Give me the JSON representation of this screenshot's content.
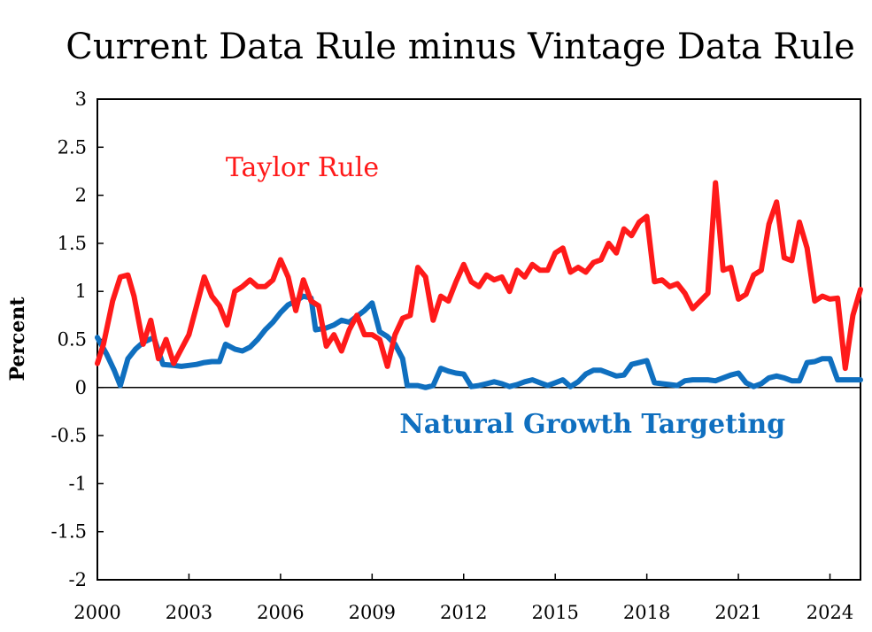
{
  "chart_data": {
    "type": "line",
    "title": "Current Data Rule minus Vintage Data Rule",
    "ylabel": "Percent",
    "xlim": [
      2000,
      2025
    ],
    "ylim": [
      -2,
      3
    ],
    "yticks": [
      -2,
      -1.5,
      -1,
      -0.5,
      0,
      0.5,
      1,
      1.5,
      2,
      2.5,
      3
    ],
    "ytick_labels": [
      "-2",
      "-1.5",
      "-1",
      "-0.5",
      "0",
      "0.5",
      "1",
      "1.5",
      "2",
      "2.5",
      "3"
    ],
    "xticks": [
      2000,
      2003,
      2006,
      2009,
      2012,
      2015,
      2018,
      2021,
      2024
    ],
    "xtick_labels": [
      "2000",
      "2003",
      "2006",
      "2009",
      "2012",
      "2015",
      "2018",
      "2021",
      "2024"
    ],
    "grid": false,
    "zero_line": true,
    "series": [
      {
        "name": "Taylor Rule",
        "color": "#ff1a1a",
        "points": [
          [
            2000.0,
            0.25
          ],
          [
            2000.2,
            0.45
          ],
          [
            2000.5,
            0.9
          ],
          [
            2000.75,
            1.15
          ],
          [
            2001.0,
            1.17
          ],
          [
            2001.2,
            0.95
          ],
          [
            2001.5,
            0.45
          ],
          [
            2001.75,
            0.7
          ],
          [
            2002.0,
            0.3
          ],
          [
            2002.25,
            0.5
          ],
          [
            2002.5,
            0.25
          ],
          [
            2002.75,
            0.4
          ],
          [
            2003.0,
            0.55
          ],
          [
            2003.25,
            0.85
          ],
          [
            2003.5,
            1.15
          ],
          [
            2003.75,
            0.95
          ],
          [
            2004.0,
            0.85
          ],
          [
            2004.25,
            0.65
          ],
          [
            2004.5,
            1.0
          ],
          [
            2004.75,
            1.05
          ],
          [
            2005.0,
            1.12
          ],
          [
            2005.25,
            1.05
          ],
          [
            2005.5,
            1.05
          ],
          [
            2005.75,
            1.12
          ],
          [
            2006.0,
            1.33
          ],
          [
            2006.25,
            1.15
          ],
          [
            2006.5,
            0.8
          ],
          [
            2006.75,
            1.12
          ],
          [
            2007.0,
            0.9
          ],
          [
            2007.25,
            0.85
          ],
          [
            2007.5,
            0.43
          ],
          [
            2007.75,
            0.55
          ],
          [
            2008.0,
            0.38
          ],
          [
            2008.25,
            0.6
          ],
          [
            2008.5,
            0.75
          ],
          [
            2008.75,
            0.55
          ],
          [
            2009.0,
            0.55
          ],
          [
            2009.25,
            0.5
          ],
          [
            2009.5,
            0.22
          ],
          [
            2009.75,
            0.55
          ],
          [
            2010.0,
            0.72
          ],
          [
            2010.25,
            0.75
          ],
          [
            2010.5,
            1.25
          ],
          [
            2010.75,
            1.15
          ],
          [
            2011.0,
            0.7
          ],
          [
            2011.25,
            0.95
          ],
          [
            2011.5,
            0.9
          ],
          [
            2011.75,
            1.1
          ],
          [
            2012.0,
            1.28
          ],
          [
            2012.25,
            1.1
          ],
          [
            2012.5,
            1.05
          ],
          [
            2012.75,
            1.17
          ],
          [
            2013.0,
            1.12
          ],
          [
            2013.25,
            1.15
          ],
          [
            2013.5,
            1.0
          ],
          [
            2013.75,
            1.22
          ],
          [
            2014.0,
            1.15
          ],
          [
            2014.25,
            1.28
          ],
          [
            2014.5,
            1.22
          ],
          [
            2014.75,
            1.22
          ],
          [
            2015.0,
            1.4
          ],
          [
            2015.25,
            1.45
          ],
          [
            2015.5,
            1.2
          ],
          [
            2015.75,
            1.25
          ],
          [
            2016.0,
            1.2
          ],
          [
            2016.25,
            1.3
          ],
          [
            2016.5,
            1.33
          ],
          [
            2016.75,
            1.5
          ],
          [
            2017.0,
            1.4
          ],
          [
            2017.25,
            1.65
          ],
          [
            2017.5,
            1.58
          ],
          [
            2017.75,
            1.72
          ],
          [
            2018.0,
            1.78
          ],
          [
            2018.25,
            1.1
          ],
          [
            2018.5,
            1.12
          ],
          [
            2018.75,
            1.05
          ],
          [
            2019.0,
            1.08
          ],
          [
            2019.25,
            0.98
          ],
          [
            2019.5,
            0.82
          ],
          [
            2019.75,
            0.9
          ],
          [
            2020.0,
            0.98
          ],
          [
            2020.25,
            2.13
          ],
          [
            2020.5,
            1.22
          ],
          [
            2020.75,
            1.25
          ],
          [
            2021.0,
            0.92
          ],
          [
            2021.25,
            0.97
          ],
          [
            2021.5,
            1.17
          ],
          [
            2021.75,
            1.22
          ],
          [
            2022.0,
            1.7
          ],
          [
            2022.25,
            1.93
          ],
          [
            2022.5,
            1.35
          ],
          [
            2022.75,
            1.32
          ],
          [
            2023.0,
            1.72
          ],
          [
            2023.25,
            1.45
          ],
          [
            2023.5,
            0.9
          ],
          [
            2023.75,
            0.95
          ],
          [
            2024.0,
            0.92
          ],
          [
            2024.25,
            0.93
          ],
          [
            2024.5,
            0.2
          ],
          [
            2024.75,
            0.75
          ],
          [
            2025.0,
            1.02
          ]
        ]
      },
      {
        "name": "Natural Growth Targeting",
        "color": "#0f6fbf",
        "points": [
          [
            2000.0,
            0.52
          ],
          [
            2000.3,
            0.35
          ],
          [
            2000.55,
            0.18
          ],
          [
            2000.75,
            0.02
          ],
          [
            2001.0,
            0.3
          ],
          [
            2001.25,
            0.4
          ],
          [
            2001.5,
            0.47
          ],
          [
            2001.85,
            0.52
          ],
          [
            2002.15,
            0.24
          ],
          [
            2002.5,
            0.23
          ],
          [
            2002.75,
            0.22
          ],
          [
            2003.0,
            0.23
          ],
          [
            2003.25,
            0.24
          ],
          [
            2003.5,
            0.26
          ],
          [
            2003.75,
            0.27
          ],
          [
            2004.0,
            0.27
          ],
          [
            2004.2,
            0.45
          ],
          [
            2004.5,
            0.4
          ],
          [
            2004.75,
            0.38
          ],
          [
            2005.0,
            0.42
          ],
          [
            2005.25,
            0.5
          ],
          [
            2005.5,
            0.6
          ],
          [
            2005.75,
            0.68
          ],
          [
            2006.0,
            0.78
          ],
          [
            2006.25,
            0.86
          ],
          [
            2006.5,
            0.9
          ],
          [
            2006.75,
            0.95
          ],
          [
            2007.0,
            0.93
          ],
          [
            2007.15,
            0.6
          ],
          [
            2007.5,
            0.62
          ],
          [
            2007.75,
            0.65
          ],
          [
            2008.0,
            0.7
          ],
          [
            2008.25,
            0.68
          ],
          [
            2008.5,
            0.74
          ],
          [
            2008.75,
            0.8
          ],
          [
            2009.0,
            0.88
          ],
          [
            2009.25,
            0.58
          ],
          [
            2009.5,
            0.53
          ],
          [
            2009.75,
            0.45
          ],
          [
            2010.0,
            0.3
          ],
          [
            2010.15,
            0.02
          ],
          [
            2010.5,
            0.02
          ],
          [
            2010.75,
            0.0
          ],
          [
            2011.0,
            0.02
          ],
          [
            2011.25,
            0.2
          ],
          [
            2011.5,
            0.17
          ],
          [
            2011.75,
            0.15
          ],
          [
            2012.0,
            0.14
          ],
          [
            2012.25,
            0.01
          ],
          [
            2012.5,
            0.02
          ],
          [
            2012.75,
            0.04
          ],
          [
            2013.0,
            0.06
          ],
          [
            2013.25,
            0.04
          ],
          [
            2013.5,
            0.01
          ],
          [
            2013.75,
            0.03
          ],
          [
            2014.0,
            0.06
          ],
          [
            2014.25,
            0.08
          ],
          [
            2014.5,
            0.05
          ],
          [
            2014.75,
            0.02
          ],
          [
            2015.0,
            0.05
          ],
          [
            2015.25,
            0.08
          ],
          [
            2015.5,
            0.01
          ],
          [
            2015.75,
            0.06
          ],
          [
            2016.0,
            0.14
          ],
          [
            2016.25,
            0.18
          ],
          [
            2016.5,
            0.18
          ],
          [
            2016.75,
            0.15
          ],
          [
            2017.0,
            0.12
          ],
          [
            2017.25,
            0.13
          ],
          [
            2017.5,
            0.24
          ],
          [
            2017.75,
            0.26
          ],
          [
            2018.0,
            0.28
          ],
          [
            2018.25,
            0.05
          ],
          [
            2018.5,
            0.04
          ],
          [
            2018.75,
            0.03
          ],
          [
            2019.0,
            0.02
          ],
          [
            2019.25,
            0.07
          ],
          [
            2019.5,
            0.08
          ],
          [
            2019.75,
            0.08
          ],
          [
            2020.0,
            0.08
          ],
          [
            2020.25,
            0.07
          ],
          [
            2020.5,
            0.1
          ],
          [
            2020.75,
            0.13
          ],
          [
            2021.0,
            0.15
          ],
          [
            2021.25,
            0.05
          ],
          [
            2021.5,
            0.01
          ],
          [
            2021.75,
            0.04
          ],
          [
            2022.0,
            0.1
          ],
          [
            2022.25,
            0.12
          ],
          [
            2022.5,
            0.1
          ],
          [
            2022.75,
            0.07
          ],
          [
            2023.0,
            0.07
          ],
          [
            2023.25,
            0.26
          ],
          [
            2023.5,
            0.27
          ],
          [
            2023.75,
            0.3
          ],
          [
            2024.0,
            0.3
          ],
          [
            2024.25,
            0.08
          ],
          [
            2024.5,
            0.08
          ],
          [
            2024.75,
            0.08
          ],
          [
            2025.0,
            0.08
          ]
        ]
      }
    ],
    "annotations": [
      {
        "text": "Taylor Rule",
        "series": 0,
        "x": 2004.2,
        "y": 2.2
      },
      {
        "text": "Natural Growth Targeting",
        "series": 1,
        "x": 2009.9,
        "y": -0.47
      }
    ]
  }
}
